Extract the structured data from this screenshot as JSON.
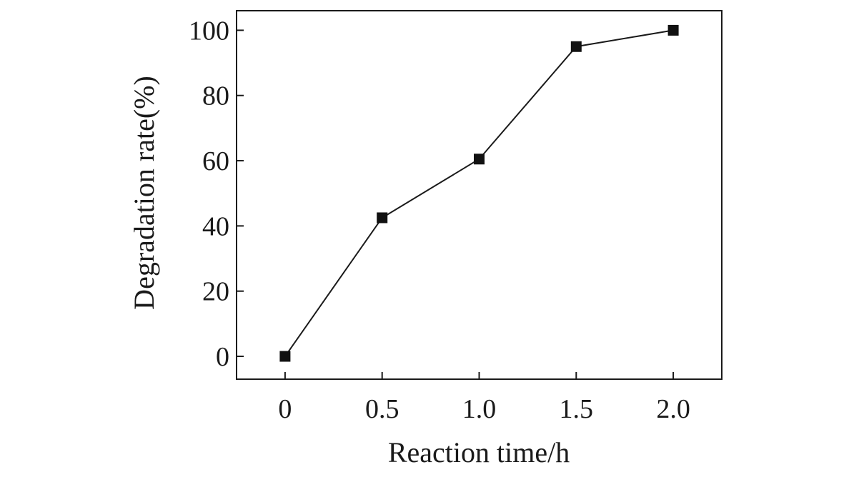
{
  "chart_data": {
    "type": "line",
    "title": "",
    "xlabel": "Reaction time/h",
    "ylabel": "Degradation rate(%)",
    "x": [
      0,
      0.5,
      1.0,
      1.5,
      2.0
    ],
    "series": [
      {
        "values": [
          0,
          42.5,
          60.5,
          95,
          100
        ]
      }
    ],
    "xlim": [
      -0.25,
      2.25
    ],
    "ylim": [
      -7,
      106
    ],
    "x_ticks": [
      0,
      0.5,
      1.0,
      1.5,
      2.0
    ],
    "x_tick_labels": [
      "0",
      "0.5",
      "1.0",
      "1.5",
      "2.0"
    ],
    "y_ticks": [
      0,
      20,
      40,
      60,
      80,
      100
    ],
    "y_tick_labels": [
      "0",
      "20",
      "40",
      "60",
      "80",
      "100"
    ],
    "marker": "square",
    "grid": false,
    "legend": "none",
    "colors": {
      "line": "#1a1a1a",
      "marker": "#111111",
      "frame": "#1a1a1a"
    }
  }
}
